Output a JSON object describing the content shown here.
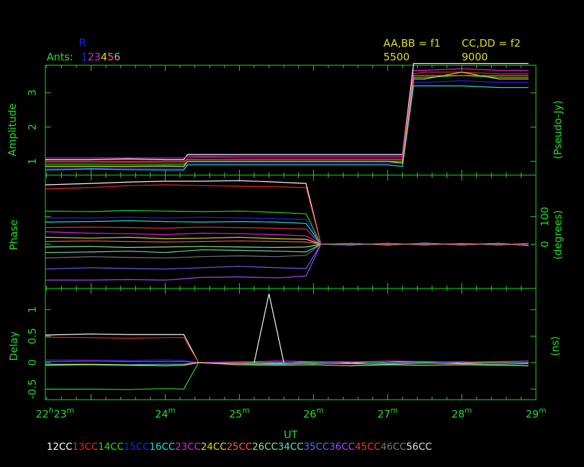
{
  "header": {
    "ants_label": "Ants:",
    "ant_numbers": [
      "1",
      "2",
      "3",
      "4",
      "5",
      "6"
    ],
    "ant_colors": [
      "#2222ee",
      "#dd22dd",
      "#dd22dd",
      "#dddd22",
      "#ff6666",
      "#aaaaaa"
    ],
    "marker": "R",
    "freq_left_label": "AA,BB = f1",
    "freq_left_value": "5500",
    "freq_right_label": "CC,DD = f2",
    "freq_right_value": "9000"
  },
  "baselines": [
    {
      "label": "12CC",
      "color": "#ffffff"
    },
    {
      "label": "13CC",
      "color": "#ee2222"
    },
    {
      "label": "14CC",
      "color": "#22dd22"
    },
    {
      "label": "15CC",
      "color": "#2222ee"
    },
    {
      "label": "16CC",
      "color": "#22dddd"
    },
    {
      "label": "23CC",
      "color": "#dd22dd"
    },
    {
      "label": "24CC",
      "color": "#dddd22"
    },
    {
      "label": "25CC",
      "color": "#ff5555"
    },
    {
      "label": "26CC",
      "color": "#88ee88"
    },
    {
      "label": "34CC",
      "color": "#66ddbb"
    },
    {
      "label": "35CC",
      "color": "#6666ff"
    },
    {
      "label": "36CC",
      "color": "#aa44ff"
    },
    {
      "label": "45CC",
      "color": "#ee3333"
    },
    {
      "label": "46CC",
      "color": "#777777"
    },
    {
      "label": "56CC",
      "color": "#dddddd"
    }
  ],
  "chart_data": [
    {
      "type": "line",
      "panel": "amplitude",
      "ylabel": "Amplitude",
      "ylabel_right": "(Pseudo-Jy)",
      "ylim": [
        0.6,
        3.8
      ],
      "yticks": [
        1,
        2,
        3
      ],
      "x": [
        22.383,
        23.0,
        23.5,
        24.0,
        24.25,
        24.3,
        24.5,
        25.0,
        25.5,
        26.0,
        26.5,
        27.0,
        27.2,
        27.35,
        27.5,
        28.0,
        28.5,
        28.9
      ],
      "series": [
        {
          "values": [
            1.05,
            1.05,
            1.07,
            1.05,
            1.05,
            1.2,
            1.2,
            1.2,
            1.2,
            1.2,
            1.2,
            1.2,
            1.2,
            3.85,
            3.85,
            3.85,
            3.85,
            3.85
          ]
        },
        {
          "values": [
            0.95,
            0.95,
            0.96,
            0.95,
            0.95,
            1.1,
            1.12,
            1.1,
            1.1,
            1.1,
            1.1,
            1.1,
            1.1,
            3.55,
            3.6,
            3.6,
            3.55,
            3.55
          ]
        },
        {
          "values": [
            0.9,
            0.9,
            0.9,
            0.9,
            0.9,
            1.0,
            1.0,
            1.0,
            1.0,
            1.0,
            1.0,
            1.0,
            1.0,
            3.45,
            3.45,
            3.5,
            3.45,
            3.45
          ]
        },
        {
          "values": [
            0.8,
            0.8,
            0.8,
            0.8,
            0.8,
            0.95,
            0.95,
            0.95,
            0.95,
            0.95,
            0.95,
            0.95,
            0.95,
            3.3,
            3.3,
            3.35,
            3.3,
            3.3
          ]
        },
        {
          "values": [
            0.75,
            0.78,
            0.76,
            0.75,
            0.75,
            0.9,
            0.9,
            0.9,
            0.9,
            0.9,
            0.9,
            0.9,
            0.85,
            3.2,
            3.2,
            3.2,
            3.15,
            3.15
          ]
        },
        {
          "values": [
            1.1,
            1.1,
            1.1,
            1.1,
            1.1,
            1.15,
            1.15,
            1.15,
            1.15,
            1.15,
            1.15,
            1.15,
            1.15,
            3.65,
            3.65,
            3.7,
            3.65,
            3.65
          ]
        },
        {
          "values": [
            0.85,
            0.85,
            0.85,
            0.86,
            0.85,
            1.0,
            1.0,
            1.0,
            1.0,
            1.0,
            1.0,
            1.0,
            0.95,
            3.4,
            3.4,
            3.6,
            3.4,
            3.4
          ]
        },
        {
          "values": [
            1.0,
            1.0,
            1.0,
            1.0,
            1.0,
            1.05,
            1.05,
            1.05,
            1.05,
            1.05,
            1.05,
            1.05,
            1.05,
            3.5,
            3.5,
            3.5,
            3.5,
            3.5
          ]
        }
      ]
    },
    {
      "type": "line",
      "panel": "phase",
      "ylabel": "Phase",
      "ylabel_right": "(degrees)",
      "ylim": [
        -160,
        250
      ],
      "yticks_right": [
        0,
        100
      ],
      "x": [
        22.383,
        23.0,
        23.5,
        24.0,
        24.5,
        25.0,
        25.5,
        25.9,
        26.1,
        26.5,
        27.0,
        27.5,
        28.0,
        28.5,
        28.9
      ],
      "series": [
        {
          "values": [
            215,
            220,
            225,
            228,
            228,
            230,
            225,
            220,
            0,
            2,
            -3,
            4,
            -2,
            3,
            -5
          ]
        },
        {
          "values": [
            200,
            205,
            212,
            215,
            212,
            210,
            208,
            205,
            0,
            -2,
            3,
            -3,
            2,
            -2,
            3
          ]
        },
        {
          "values": [
            120,
            118,
            122,
            120,
            118,
            120,
            115,
            110,
            0,
            3,
            -2,
            2,
            -3,
            2,
            -4
          ]
        },
        {
          "values": [
            95,
            95,
            98,
            95,
            98,
            95,
            92,
            90,
            0,
            -3,
            2,
            -2,
            3,
            -3,
            2
          ]
        },
        {
          "values": [
            80,
            82,
            85,
            82,
            80,
            82,
            80,
            75,
            0,
            2,
            -2,
            3,
            -2,
            2,
            -3
          ]
        },
        {
          "values": [
            45,
            40,
            38,
            35,
            40,
            38,
            35,
            30,
            0,
            -2,
            3,
            -2,
            2,
            -3,
            2
          ]
        },
        {
          "values": [
            25,
            22,
            25,
            20,
            22,
            25,
            20,
            18,
            0,
            3,
            -3,
            2,
            -2,
            3,
            -4
          ]
        },
        {
          "values": [
            10,
            12,
            10,
            8,
            10,
            12,
            10,
            8,
            0,
            -2,
            2,
            -3,
            3,
            -2,
            3
          ]
        },
        {
          "values": [
            -10,
            -8,
            -12,
            -10,
            -8,
            -10,
            -12,
            -10,
            0,
            2,
            -2,
            2,
            -3,
            2,
            -5
          ]
        },
        {
          "values": [
            -30,
            -28,
            -25,
            -30,
            -20,
            -22,
            -25,
            -28,
            0,
            -3,
            3,
            -2,
            2,
            -3,
            2
          ]
        },
        {
          "values": [
            -90,
            -85,
            -88,
            -90,
            -85,
            -80,
            -85,
            -88,
            0,
            2,
            -2,
            3,
            -2,
            2,
            -3
          ]
        },
        {
          "values": [
            -130,
            -130,
            -128,
            -130,
            -120,
            -118,
            -122,
            -115,
            0,
            -2,
            3,
            -2,
            2,
            -3,
            2
          ]
        },
        {
          "values": [
            60,
            62,
            60,
            58,
            62,
            60,
            58,
            55,
            0,
            3,
            -2,
            2,
            -3,
            2,
            -4
          ]
        },
        {
          "values": [
            -50,
            -45,
            -48,
            -50,
            -45,
            -42,
            -45,
            -40,
            0,
            -2,
            2,
            -3,
            2,
            -2,
            3
          ]
        }
      ]
    },
    {
      "type": "line",
      "panel": "delay",
      "ylabel": "Delay",
      "ylabel_right": "(ns)",
      "ylim": [
        -0.7,
        1.4
      ],
      "yticks": [
        -0.5,
        0,
        0.5,
        1
      ],
      "x": [
        22.383,
        23.0,
        23.5,
        24.0,
        24.25,
        24.45,
        25.0,
        25.5,
        26.0,
        26.5,
        27.0,
        27.5,
        28.0,
        28.5,
        28.9
      ],
      "series": [
        {
          "values": [
            0.52,
            0.54,
            0.53,
            0.53,
            0.53,
            0.0,
            0.01,
            -0.01,
            0.02,
            -0.01,
            0.01,
            0.02,
            -0.01,
            0.01,
            0.0
          ]
        },
        {
          "values": [
            0.48,
            0.47,
            0.46,
            0.47,
            0.47,
            0.0,
            -0.01,
            0.01,
            -0.02,
            0.01,
            -0.01,
            0.0,
            0.02,
            -0.01,
            0.01
          ]
        },
        {
          "values": [
            -0.5,
            -0.5,
            -0.51,
            -0.49,
            -0.5,
            0.0,
            0.01,
            -0.02,
            0.01,
            0.02,
            -0.01,
            0.01,
            -0.02,
            0.01,
            -0.01
          ]
        },
        {
          "values": [
            0.05,
            0.05,
            0.04,
            0.05,
            0.04,
            0.0,
            0.02,
            0.01,
            -0.01,
            0.02,
            0.01,
            -0.01,
            0.01,
            0.02,
            0.01
          ]
        },
        {
          "values": [
            -0.03,
            -0.03,
            -0.04,
            -0.03,
            -0.03,
            0.0,
            -0.02,
            -0.03,
            -0.01,
            -0.02,
            -0.03,
            -0.01,
            -0.02,
            -0.03,
            -0.02
          ]
        },
        {
          "values": [
            0.02,
            0.03,
            0.02,
            0.02,
            0.02,
            0.0,
            0.01,
            0.03,
            0.02,
            0.01,
            0.03,
            0.02,
            0.01,
            0.02,
            0.03
          ]
        },
        {
          "values": [
            -0.05,
            -0.04,
            -0.05,
            -0.06,
            -0.05,
            0.0,
            -0.04,
            -0.05,
            -0.04,
            -0.06,
            -0.04,
            -0.05,
            -0.04,
            -0.05,
            -0.06
          ]
        }
      ],
      "spike": {
        "x": [
          25.2,
          25.4,
          25.6
        ],
        "values": [
          0.0,
          1.3,
          0.0
        ]
      }
    }
  ],
  "xaxis": {
    "label": "UT",
    "range": [
      22.383,
      29.0
    ],
    "ticks": [
      {
        "value": 22.383,
        "main": "22",
        "sup": "h",
        "post": "23",
        "post_sup": "m"
      },
      {
        "value": 24,
        "main": "24",
        "sup": "m"
      },
      {
        "value": 25,
        "main": "25",
        "sup": "m"
      },
      {
        "value": 26,
        "main": "26",
        "sup": "m"
      },
      {
        "value": 27,
        "main": "27",
        "sup": "m"
      },
      {
        "value": 28,
        "main": "28",
        "sup": "m"
      },
      {
        "value": 29,
        "main": "29",
        "sup": "m"
      }
    ]
  }
}
